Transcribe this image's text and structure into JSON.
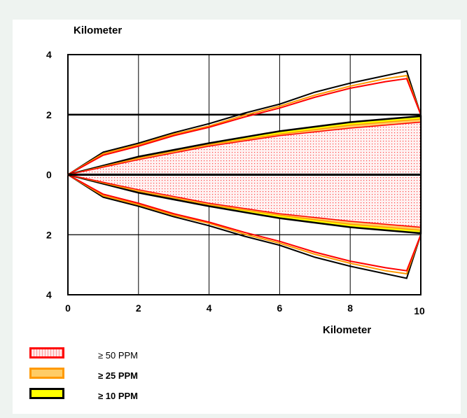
{
  "chart_data": {
    "type": "area",
    "xlabel": "Kilometer",
    "ylabel": "Kilometer",
    "xlim": [
      0,
      10
    ],
    "ylim": [
      -4,
      4
    ],
    "x_ticks": [
      "0",
      "2",
      "4",
      "6",
      "8",
      "10"
    ],
    "y_ticks": [
      "4",
      "2",
      "0",
      "2",
      "4"
    ],
    "y_tick_values": [
      4,
      2,
      0,
      -2,
      -4
    ],
    "grid": true,
    "legend_position": "bottom-left",
    "series": [
      {
        "name": "≥ 10 PPM",
        "color": "#000000",
        "fill": "#ffff00",
        "x": [
          0,
          2,
          4,
          6,
          8,
          10
        ],
        "upper": [
          0,
          0.6,
          1.05,
          1.45,
          1.75,
          1.95
        ]
      },
      {
        "name": "≥ 25 PPM",
        "color": "#ff9900",
        "fill": "#ffcc66",
        "x": [
          0,
          2,
          4,
          6,
          8,
          10
        ],
        "upper": [
          0,
          0.55,
          1.0,
          1.35,
          1.65,
          1.85
        ]
      },
      {
        "name": "≥ 50 PPM",
        "color": "#ff0000",
        "fill": "#ffe0e0",
        "x": [
          0,
          2,
          4,
          6,
          8,
          10
        ],
        "upper": [
          0,
          0.5,
          0.95,
          1.3,
          1.55,
          1.75
        ]
      }
    ],
    "outer_contours": [
      {
        "color": "#000000",
        "x": [
          0,
          1,
          2,
          3,
          4,
          5,
          6,
          7,
          8,
          9,
          9.6,
          10
        ],
        "upper": [
          0,
          0.75,
          1.05,
          1.4,
          1.7,
          2.05,
          2.35,
          2.75,
          3.05,
          3.3,
          3.45,
          2.0
        ]
      },
      {
        "color": "#ff9900",
        "x": [
          0,
          1,
          2,
          3,
          4,
          5,
          6,
          7,
          8,
          9,
          9.6,
          10
        ],
        "upper": [
          0,
          0.7,
          1.0,
          1.35,
          1.62,
          1.98,
          2.28,
          2.65,
          2.95,
          3.2,
          3.3,
          2.0
        ]
      },
      {
        "color": "#ff0000",
        "x": [
          0,
          1,
          2,
          3,
          4,
          5,
          6,
          7,
          8,
          9,
          9.6,
          10
        ],
        "upper": [
          0,
          0.65,
          0.95,
          1.3,
          1.58,
          1.92,
          2.22,
          2.58,
          2.88,
          3.1,
          3.2,
          2.0
        ]
      }
    ],
    "legend": [
      {
        "label": "≥ 50 PPM",
        "border": "#ff0000",
        "fill": "#ffe0e0"
      },
      {
        "label": "≥ 25  PPM",
        "border": "#ff9900",
        "fill": "#ffcc66"
      },
      {
        "label": "≥ 10  PPM",
        "border": "#000000",
        "fill": "#ffff00"
      }
    ]
  }
}
